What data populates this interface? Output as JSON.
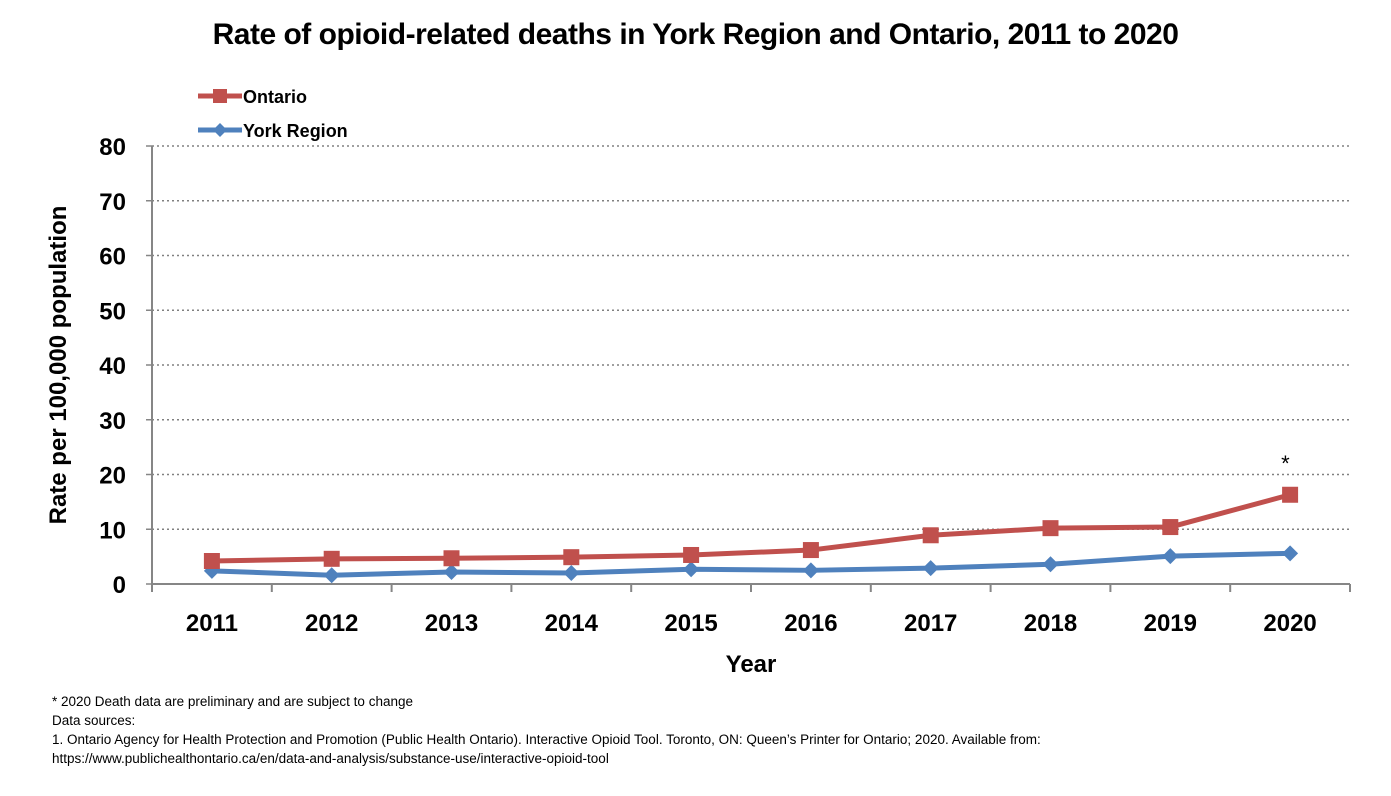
{
  "chart_data": {
    "type": "line",
    "title": "Rate of opioid-related deaths in York Region and Ontario, 2011 to 2020",
    "xlabel": "Year",
    "ylabel": "Rate per 100,000 population",
    "categories": [
      "2011",
      "2012",
      "2013",
      "2014",
      "2015",
      "2016",
      "2017",
      "2018",
      "2019",
      "2020"
    ],
    "ylim": [
      0,
      80
    ],
    "yticks": [
      0,
      10,
      20,
      30,
      40,
      50,
      60,
      70,
      80
    ],
    "grid": true,
    "legend_position": "top-left",
    "series": [
      {
        "name": "Ontario",
        "color": "#c0504d",
        "marker": "square",
        "values": [
          4.2,
          4.6,
          4.7,
          4.9,
          5.3,
          6.2,
          8.9,
          10.2,
          10.4,
          16.3
        ]
      },
      {
        "name": "York Region",
        "color": "#4f81bd",
        "marker": "diamond",
        "values": [
          2.4,
          1.6,
          2.2,
          2.0,
          2.7,
          2.5,
          2.9,
          3.6,
          5.1,
          5.6
        ]
      }
    ],
    "annotations": [
      {
        "text": "*",
        "category": "2020",
        "series": "Ontario"
      }
    ]
  },
  "footnotes": [
    "* 2020 Death data are preliminary and are subject to change",
    "Data sources:",
    "1. Ontario Agency for Health Protection and Promotion (Public Health Ontario). Interactive Opioid Tool. Toronto, ON: Queen’s Printer for Ontario; 2020. Available from:",
    "https://www.publichealthontario.ca/en/data-and-analysis/substance-use/interactive-opioid-tool"
  ]
}
